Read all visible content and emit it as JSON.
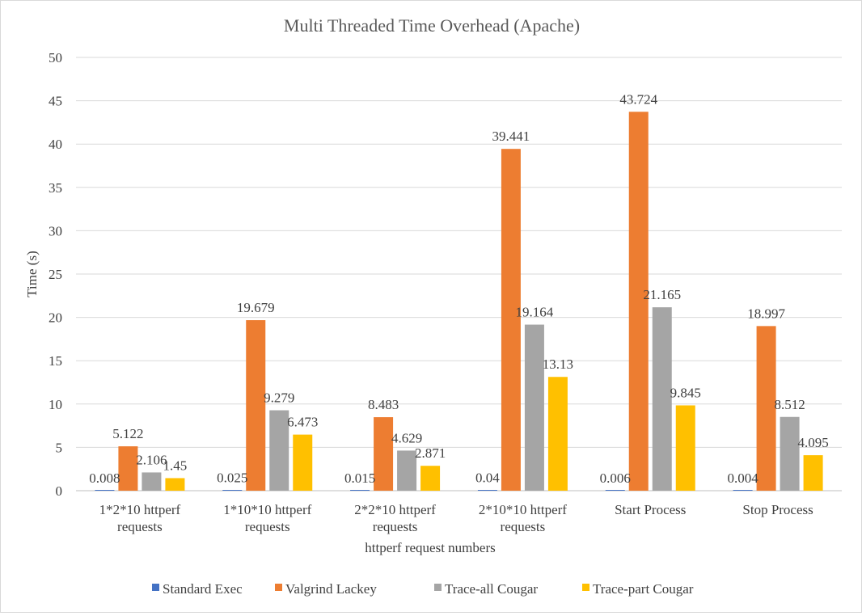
{
  "chart_data": {
    "type": "bar",
    "title": "Multi Threaded Time Overhead (Apache)",
    "xlabel": "httperf request numbers",
    "ylabel": "Time (s)",
    "ylim": [
      0,
      50
    ],
    "yticks": [
      0,
      5,
      10,
      15,
      20,
      25,
      30,
      35,
      40,
      45,
      50
    ],
    "grid": true,
    "legend_position": "bottom",
    "categories": [
      [
        "1*2*10 httperf",
        "requests"
      ],
      [
        "1*10*10 httperf",
        "requests"
      ],
      [
        "2*2*10 httperf",
        "requests"
      ],
      [
        "2*10*10 httperf",
        "requests"
      ],
      [
        "Start Process"
      ],
      [
        "Stop Process"
      ]
    ],
    "series": [
      {
        "name": "Standard Exec",
        "color": "#4472C4",
        "values": [
          0.008,
          0.025,
          0.015,
          0.04,
          0.006,
          0.004
        ],
        "labels": [
          "0.008",
          "0.025",
          "0.015",
          "0.04",
          "0.006",
          "0.004"
        ]
      },
      {
        "name": "Valgrind Lackey",
        "color": "#ED7D31",
        "values": [
          5.122,
          19.679,
          8.483,
          39.441,
          43.724,
          18.997
        ],
        "labels": [
          "5.122",
          "19.679",
          "8.483",
          "39.441",
          "43.724",
          "18.997"
        ]
      },
      {
        "name": "Trace-all Cougar",
        "color": "#A5A5A5",
        "values": [
          2.106,
          9.279,
          4.629,
          19.164,
          21.165,
          8.512
        ],
        "labels": [
          "2.106",
          "9.279",
          "4.629",
          "19.164",
          "21.165",
          "8.512"
        ]
      },
      {
        "name": "Trace-part Cougar",
        "color": "#FFC000",
        "values": [
          1.45,
          6.473,
          2.871,
          13.13,
          9.845,
          4.095
        ],
        "labels": [
          "1.45",
          "6.473",
          "2.871",
          "13.13",
          "9.845",
          "4.095"
        ]
      }
    ]
  }
}
